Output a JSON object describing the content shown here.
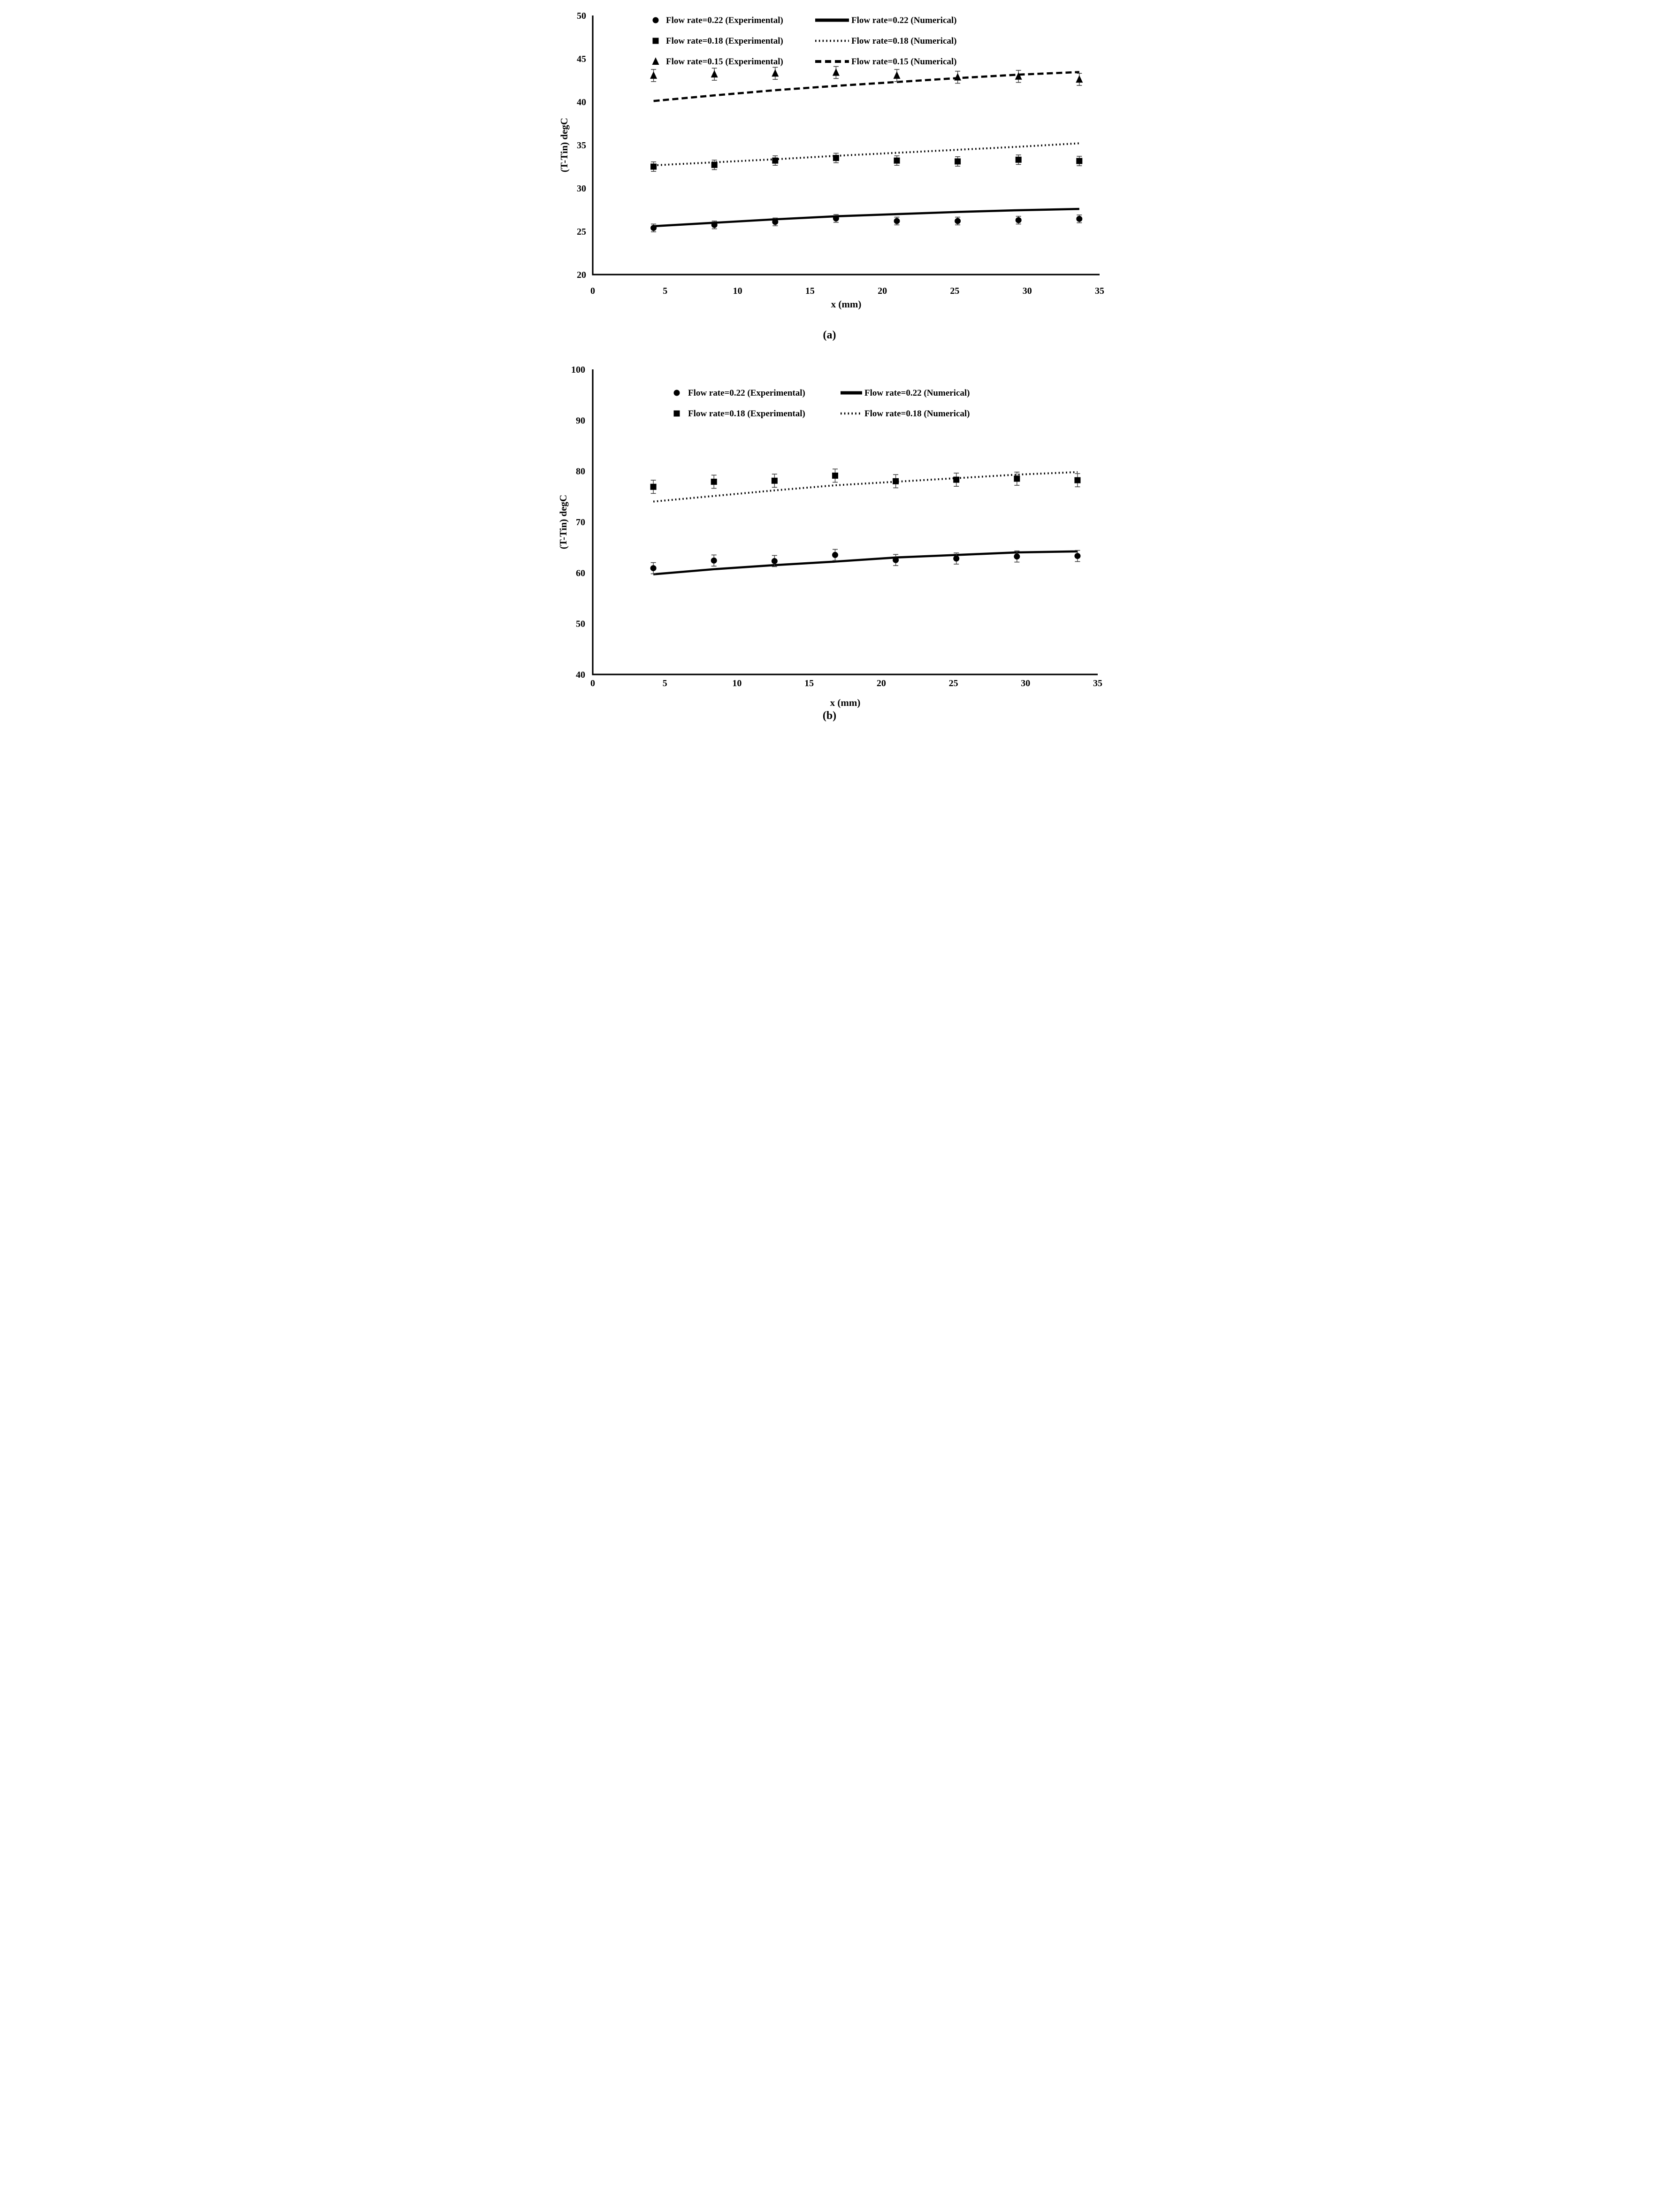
{
  "page_background": "#ffffff",
  "ink_color": "#000000",
  "error_bar_color": "#3f3f3f",
  "chart_data": [
    {
      "id": "a",
      "type": "scatter+line",
      "caption": "(a)",
      "xlabel": "x (mm)",
      "ylabel": "(T-Tin) degC",
      "xlim": [
        0,
        35
      ],
      "ylim": [
        20,
        50
      ],
      "x_ticks": [
        0,
        5,
        10,
        15,
        20,
        25,
        30,
        35
      ],
      "y_ticks": [
        20,
        25,
        30,
        35,
        40,
        45,
        50
      ],
      "grid": false,
      "legend_position": "top-inside-two-columns",
      "x": [
        4.2,
        8.4,
        12.6,
        16.8,
        21.0,
        25.2,
        29.4,
        33.6
      ],
      "series": [
        {
          "name": "Flow rate=0.22 (Experimental)",
          "type": "scatter",
          "marker": "circle",
          "values": [
            25.4,
            25.75,
            26.1,
            26.5,
            26.2,
            26.2,
            26.3,
            26.45
          ],
          "error": 0.45
        },
        {
          "name": "Flow rate=0.18 (Experimental)",
          "type": "scatter",
          "marker": "square",
          "values": [
            32.5,
            32.7,
            33.2,
            33.5,
            33.2,
            33.1,
            33.3,
            33.15
          ],
          "error": 0.55
        },
        {
          "name": "Flow rate=0.15 (Experimental)",
          "type": "scatter",
          "marker": "triangle",
          "values": [
            43.05,
            43.2,
            43.3,
            43.4,
            43.05,
            42.85,
            42.95,
            42.6
          ],
          "error": 0.7
        },
        {
          "name": "Flow rate=0.22 (Numerical)",
          "type": "line",
          "style": "solid",
          "values": [
            25.6,
            26.0,
            26.4,
            26.75,
            27.0,
            27.25,
            27.45,
            27.6
          ]
        },
        {
          "name": "Flow rate=0.18 (Numerical)",
          "type": "line",
          "style": "dotted",
          "values": [
            32.65,
            33.0,
            33.35,
            33.75,
            34.1,
            34.45,
            34.8,
            35.2
          ]
        },
        {
          "name": "Flow rate=0.15 (Numerical)",
          "type": "line",
          "style": "dashed",
          "values": [
            40.1,
            40.75,
            41.35,
            41.85,
            42.3,
            42.75,
            43.15,
            43.45
          ]
        }
      ],
      "legend_col1": [
        0,
        1,
        2
      ],
      "legend_col2": [
        3,
        4,
        5
      ]
    },
    {
      "id": "b",
      "type": "scatter+line",
      "caption": "(b)",
      "xlabel": "x (mm)",
      "ylabel": "(T-Tin) degC",
      "xlim": [
        0,
        35
      ],
      "ylim": [
        40,
        100
      ],
      "x_ticks": [
        0,
        5,
        10,
        15,
        20,
        25,
        30,
        35
      ],
      "y_ticks": [
        40,
        50,
        60,
        70,
        80,
        90,
        100
      ],
      "grid": false,
      "legend_position": "top-inside-two-columns",
      "x": [
        4.2,
        8.4,
        12.6,
        16.8,
        21.0,
        25.2,
        29.4,
        33.6
      ],
      "series": [
        {
          "name": "Flow rate=0.22 (Experimental)",
          "type": "scatter",
          "marker": "circle",
          "values": [
            60.9,
            62.4,
            62.3,
            63.5,
            62.5,
            62.8,
            63.2,
            63.3
          ],
          "error": 1.1
        },
        {
          "name": "Flow rate=0.18 (Experimental)",
          "type": "scatter",
          "marker": "square",
          "values": [
            76.9,
            77.9,
            78.1,
            79.1,
            78.0,
            78.3,
            78.5,
            78.2
          ],
          "error": 1.3
        },
        {
          "name": "Flow rate=0.22 (Numerical)",
          "type": "line",
          "style": "solid",
          "values": [
            59.7,
            60.7,
            61.5,
            62.2,
            63.0,
            63.5,
            64.0,
            64.2
          ]
        },
        {
          "name": "Flow rate=0.18 (Numerical)",
          "type": "line",
          "style": "dotted",
          "values": [
            74.0,
            75.1,
            76.2,
            77.2,
            77.9,
            78.6,
            79.3,
            79.8
          ]
        }
      ],
      "legend_col1": [
        0,
        1
      ],
      "legend_col2": [
        2,
        3
      ]
    }
  ]
}
